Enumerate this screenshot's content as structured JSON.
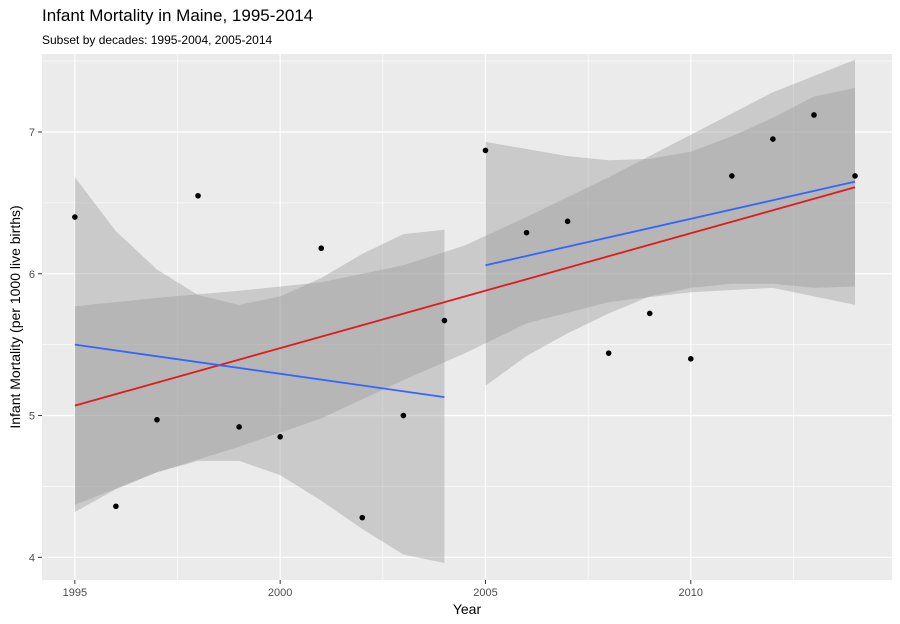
{
  "chart_data": {
    "type": "scatter",
    "title": "Infant Mortality in Maine, 1995-2014",
    "subtitle": "Subset by decades: 1995-2004, 2005-2014",
    "xlabel": "Year",
    "ylabel": "Infant Mortality (per 1000 live births)",
    "xlim": [
      1994.2,
      2014.9
    ],
    "ylim": [
      3.84,
      7.55
    ],
    "x_ticks": [
      1995,
      2000,
      2005,
      2010
    ],
    "y_ticks": [
      4,
      5,
      6,
      7
    ],
    "grid": true,
    "background": "#ebebeb",
    "points": {
      "x": [
        1995,
        1996,
        1997,
        1998,
        1999,
        2000,
        2001,
        2002,
        2003,
        2004,
        2005,
        2006,
        2007,
        2008,
        2009,
        2010,
        2011,
        2012,
        2013,
        2014
      ],
      "y": [
        6.4,
        4.36,
        4.97,
        6.55,
        4.92,
        4.85,
        6.18,
        4.28,
        5.0,
        5.67,
        6.87,
        6.29,
        6.37,
        5.44,
        5.72,
        5.4,
        6.69,
        6.95,
        7.12,
        6.69
      ],
      "color": "#000000"
    },
    "fits": [
      {
        "x": [
          1995,
          2014
        ],
        "y": [
          5.07,
          6.61
        ],
        "color": "#e31a1c",
        "band": {
          "x": [
            1995,
            1997,
            1999,
            2001,
            2003,
            2004.5,
            2006,
            2008,
            2010,
            2012,
            2014
          ],
          "upper": [
            5.77,
            5.83,
            5.88,
            5.94,
            6.06,
            6.2,
            6.4,
            6.68,
            6.98,
            7.28,
            7.51
          ],
          "lower": [
            4.37,
            4.6,
            4.78,
            4.98,
            5.25,
            5.44,
            5.65,
            5.8,
            5.87,
            5.9,
            5.78
          ]
        }
      },
      {
        "x": [
          1995,
          2004
        ],
        "y": [
          5.5,
          5.13
        ],
        "color": "#3366ff",
        "band": {
          "x": [
            1995,
            1996,
            1997,
            1998,
            1999,
            2000,
            2001,
            2002,
            2003,
            2004
          ],
          "upper": [
            6.68,
            6.3,
            6.03,
            5.85,
            5.78,
            5.84,
            5.97,
            6.14,
            6.28,
            6.31
          ],
          "lower": [
            4.32,
            4.48,
            4.6,
            4.68,
            4.68,
            4.58,
            4.4,
            4.2,
            4.02,
            3.96
          ]
        }
      },
      {
        "x": [
          2005,
          2014
        ],
        "y": [
          6.06,
          6.65
        ],
        "color": "#3366ff",
        "band": {
          "x": [
            2005,
            2006,
            2007,
            2008,
            2009,
            2010,
            2011,
            2012,
            2013,
            2014
          ],
          "upper": [
            6.93,
            6.88,
            6.83,
            6.8,
            6.81,
            6.86,
            6.97,
            7.1,
            7.25,
            7.31
          ],
          "lower": [
            5.21,
            5.42,
            5.58,
            5.72,
            5.84,
            5.9,
            5.93,
            5.93,
            5.9,
            5.91
          ]
        }
      }
    ]
  }
}
